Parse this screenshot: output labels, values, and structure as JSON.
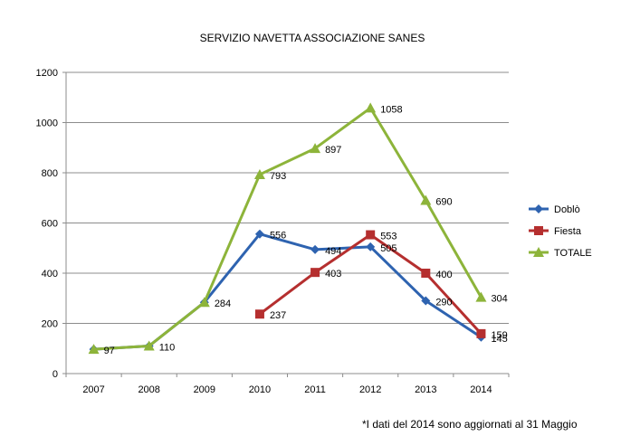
{
  "chart_data": {
    "type": "line",
    "title": "SERVIZIO NAVETTA ASSOCIAZIONE SANES",
    "categories": [
      "2007",
      "2008",
      "2009",
      "2010",
      "2011",
      "2012",
      "2013",
      "2014"
    ],
    "ylim": [
      0,
      1200
    ],
    "yticks": [
      0,
      200,
      400,
      600,
      800,
      1000,
      1200
    ],
    "grid": true,
    "legend_position": "right",
    "series": [
      {
        "name": "Doblò",
        "color": "#2e63b0",
        "marker": "diamond",
        "values": [
          97,
          110,
          284,
          556,
          494,
          505,
          290,
          145
        ]
      },
      {
        "name": "Fiesta",
        "color": "#b52f2f",
        "marker": "square",
        "values": [
          null,
          null,
          null,
          237,
          403,
          553,
          400,
          159
        ]
      },
      {
        "name": "TOTALE",
        "color": "#8db43a",
        "marker": "triangle",
        "values": [
          97,
          110,
          284,
          793,
          897,
          1058,
          690,
          304
        ]
      }
    ],
    "data_labels": [
      {
        "series": 2,
        "index": 0,
        "text": "97"
      },
      {
        "series": 2,
        "index": 1,
        "text": "110"
      },
      {
        "series": 2,
        "index": 2,
        "text": "284"
      },
      {
        "series": 0,
        "index": 3,
        "text": "556"
      },
      {
        "series": 0,
        "index": 4,
        "text": "494"
      },
      {
        "series": 0,
        "index": 5,
        "text": "505"
      },
      {
        "series": 0,
        "index": 6,
        "text": "290"
      },
      {
        "series": 0,
        "index": 7,
        "text": "145"
      },
      {
        "series": 1,
        "index": 3,
        "text": "237"
      },
      {
        "series": 1,
        "index": 4,
        "text": "403"
      },
      {
        "series": 1,
        "index": 5,
        "text": "553"
      },
      {
        "series": 1,
        "index": 6,
        "text": "400"
      },
      {
        "series": 1,
        "index": 7,
        "text": "159"
      },
      {
        "series": 2,
        "index": 3,
        "text": "793"
      },
      {
        "series": 2,
        "index": 4,
        "text": "897"
      },
      {
        "series": 2,
        "index": 5,
        "text": "1058"
      },
      {
        "series": 2,
        "index": 6,
        "text": "690"
      },
      {
        "series": 2,
        "index": 7,
        "text": "304"
      }
    ]
  },
  "footnote": "*I dati del 2014  sono aggiornati al 31 Maggio"
}
